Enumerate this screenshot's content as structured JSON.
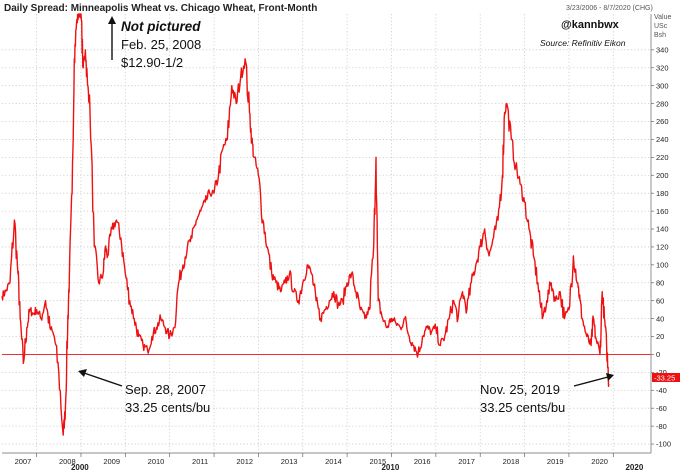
{
  "header": {
    "title": "Daily Spread: Minneapolis Wheat vs. Chicago Wheat, Front-Month",
    "date_range": "3/23/2006 - 8/7/2020 (CHG)",
    "axis_unit_lines": [
      "Value",
      "USc",
      "Bsh"
    ],
    "handle": "@kannbwx",
    "source": "Source: Refinitiv Eikon"
  },
  "annotations": {
    "top_line1": "Not pictured",
    "top_line2": "Feb. 25, 2008",
    "top_line3": "$12.90-1/2",
    "left_line1": "Sep. 28, 2007",
    "left_line2": "33.25 cents/bu",
    "right_line1": "Nov. 25, 2019",
    "right_line2": "33.25 cents/bu"
  },
  "last_value_label": "-33.25",
  "colors": {
    "series": "#ee1111",
    "zero_line": "#ee1111",
    "grid": "#c9c9c9",
    "text": "#222222"
  },
  "chart_data": {
    "type": "line",
    "title": "Daily Spread: Minneapolis Wheat vs. Chicago Wheat, Front-Month",
    "ylabel": "Value USc Bsh",
    "ylim": [
      -110,
      380
    ],
    "xlim": [
      2006.22,
      2020.85
    ],
    "grid": true,
    "y_ticks": [
      -100,
      -80,
      -60,
      -40,
      -20,
      0,
      20,
      40,
      60,
      80,
      100,
      120,
      140,
      160,
      180,
      200,
      220,
      240,
      260,
      280,
      300,
      320,
      340
    ],
    "x_ticks": [
      {
        "x": 2007.0,
        "label": "2007"
      },
      {
        "x": 2008.0,
        "label": "2008"
      },
      {
        "x": 2009.0,
        "label": "2009"
      },
      {
        "x": 2010.0,
        "label": "2010"
      },
      {
        "x": 2011.0,
        "label": "2011"
      },
      {
        "x": 2012.0,
        "label": "2012"
      },
      {
        "x": 2013.0,
        "label": "2013"
      },
      {
        "x": 2014.0,
        "label": "2014"
      },
      {
        "x": 2015.0,
        "label": "2015"
      },
      {
        "x": 2016.0,
        "label": "2016"
      },
      {
        "x": 2017.0,
        "label": "2017"
      },
      {
        "x": 2018.0,
        "label": "2018"
      },
      {
        "x": 2019.0,
        "label": "2019"
      },
      {
        "x": 2020.0,
        "label": "2020"
      }
    ],
    "x_major_labels": [
      {
        "x": 2008.0,
        "label": "2000"
      },
      {
        "x": 2015.0,
        "label": "2010"
      },
      {
        "x": 2020.5,
        "label": "2020"
      }
    ],
    "series": [
      {
        "x": [
          2006.22,
          2006.3,
          2006.4,
          2006.5,
          2006.58,
          2006.63,
          2006.7,
          2006.78,
          2006.85,
          2006.92,
          2007.0,
          2007.1,
          2007.2,
          2007.3,
          2007.4,
          2007.5,
          2007.6,
          2007.65,
          2007.7,
          2007.74,
          2007.8,
          2007.85,
          2007.9,
          2007.95,
          2008.0,
          2008.05,
          2008.1,
          2008.15,
          2008.2,
          2008.3,
          2008.4,
          2008.5,
          2008.55,
          2008.6,
          2008.7,
          2008.8,
          2008.9,
          2009.0,
          2009.1,
          2009.2,
          2009.3,
          2009.4,
          2009.5,
          2009.6,
          2009.7,
          2009.8,
          2009.9,
          2010.0,
          2010.1,
          2010.2,
          2010.3,
          2010.4,
          2010.5,
          2010.6,
          2010.7,
          2010.8,
          2010.9,
          2011.0,
          2011.1,
          2011.2,
          2011.3,
          2011.4,
          2011.5,
          2011.6,
          2011.7,
          2011.8,
          2011.85,
          2011.9,
          2012.0,
          2012.1,
          2012.2,
          2012.3,
          2012.4,
          2012.5,
          2012.6,
          2012.7,
          2012.8,
          2012.9,
          2013.0,
          2013.1,
          2013.2,
          2013.3,
          2013.4,
          2013.5,
          2013.6,
          2013.7,
          2013.8,
          2013.9,
          2014.0,
          2014.1,
          2014.2,
          2014.3,
          2014.4,
          2014.5,
          2014.6,
          2014.65,
          2014.7,
          2014.8,
          2014.9,
          2015.0,
          2015.1,
          2015.2,
          2015.3,
          2015.4,
          2015.5,
          2015.6,
          2015.7,
          2015.8,
          2015.9,
          2016.0,
          2016.1,
          2016.2,
          2016.3,
          2016.4,
          2016.5,
          2016.6,
          2016.7,
          2016.8,
          2016.9,
          2017.0,
          2017.1,
          2017.2,
          2017.3,
          2017.4,
          2017.5,
          2017.55,
          2017.6,
          2017.7,
          2017.8,
          2017.9,
          2018.0,
          2018.1,
          2018.2,
          2018.3,
          2018.4,
          2018.5,
          2018.6,
          2018.7,
          2018.8,
          2018.9,
          2019.0,
          2019.1,
          2019.2,
          2019.25,
          2019.3,
          2019.4,
          2019.5,
          2019.55,
          2019.6,
          2019.7,
          2019.75,
          2019.8,
          2019.85,
          2019.9
        ],
        "values": [
          65,
          70,
          80,
          150,
          90,
          40,
          -10,
          30,
          50,
          45,
          50,
          40,
          60,
          30,
          20,
          -20,
          -90,
          -60,
          30,
          90,
          180,
          330,
          370,
          380,
          380,
          320,
          340,
          300,
          280,
          120,
          80,
          90,
          120,
          110,
          140,
          150,
          130,
          90,
          60,
          40,
          20,
          10,
          5,
          20,
          30,
          40,
          30,
          20,
          30,
          80,
          100,
          120,
          130,
          150,
          160,
          170,
          180,
          180,
          200,
          230,
          240,
          300,
          280,
          310,
          330,
          270,
          240,
          220,
          200,
          150,
          120,
          90,
          80,
          70,
          80,
          90,
          70,
          60,
          80,
          100,
          90,
          60,
          40,
          50,
          60,
          70,
          55,
          60,
          80,
          90,
          70,
          50,
          40,
          50,
          120,
          220,
          60,
          40,
          30,
          40,
          35,
          30,
          40,
          20,
          10,
          0,
          20,
          30,
          25,
          30,
          10,
          20,
          40,
          60,
          40,
          70,
          50,
          80,
          100,
          120,
          140,
          110,
          130,
          150,
          200,
          270,
          280,
          240,
          210,
          190,
          170,
          140,
          110,
          80,
          40,
          60,
          80,
          60,
          70,
          40,
          50,
          110,
          80,
          60,
          40,
          20,
          10,
          40,
          20,
          0,
          70,
          40,
          10,
          -33.25
        ]
      }
    ]
  }
}
